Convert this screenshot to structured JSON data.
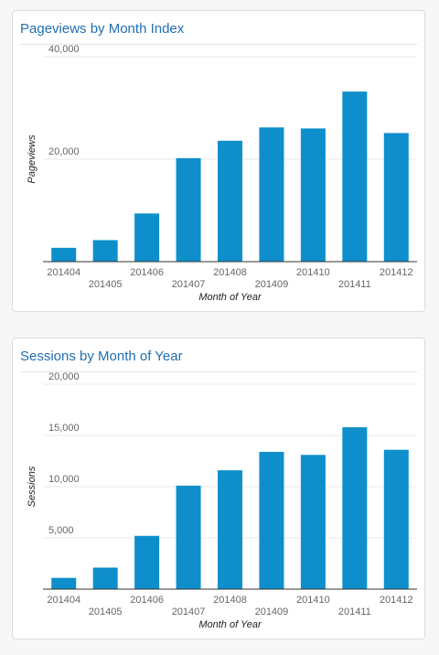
{
  "theme": {
    "bar_color": "#0e8fcb",
    "title_color": "#1f6fb2",
    "grid_color": "#e8e8e8",
    "axis_color": "#333333"
  },
  "charts": [
    {
      "title": "Pageviews by Month Index",
      "chart_data": {
        "type": "bar",
        "title": "Pageviews by Month Index",
        "xlabel": "Month of Year",
        "ylabel": "Pageviews",
        "categories": [
          "201404",
          "201405",
          "201406",
          "201407",
          "201408",
          "201409",
          "201410",
          "201411",
          "201412"
        ],
        "values": [
          2700,
          4200,
          9400,
          20200,
          23600,
          26200,
          26000,
          33200,
          25100
        ],
        "ylim": [
          0,
          40000
        ],
        "yticks": [
          {
            "value": 20000,
            "label": "20,000"
          },
          {
            "value": 40000,
            "label": "40,000"
          }
        ],
        "grid": true,
        "legend": "none"
      }
    },
    {
      "title": "Sessions by Month of Year",
      "chart_data": {
        "type": "bar",
        "title": "Sessions by Month of Year",
        "xlabel": "Month of Year",
        "ylabel": "Sessions",
        "categories": [
          "201404",
          "201405",
          "201406",
          "201407",
          "201408",
          "201409",
          "201410",
          "201411",
          "201412"
        ],
        "values": [
          1100,
          2100,
          5200,
          10100,
          11600,
          13400,
          13100,
          15800,
          13600
        ],
        "ylim": [
          0,
          20000
        ],
        "yticks": [
          {
            "value": 5000,
            "label": "5,000"
          },
          {
            "value": 10000,
            "label": "10,000"
          },
          {
            "value": 15000,
            "label": "15,000"
          },
          {
            "value": 20000,
            "label": "20,000"
          }
        ],
        "grid": true,
        "legend": "none"
      }
    }
  ]
}
